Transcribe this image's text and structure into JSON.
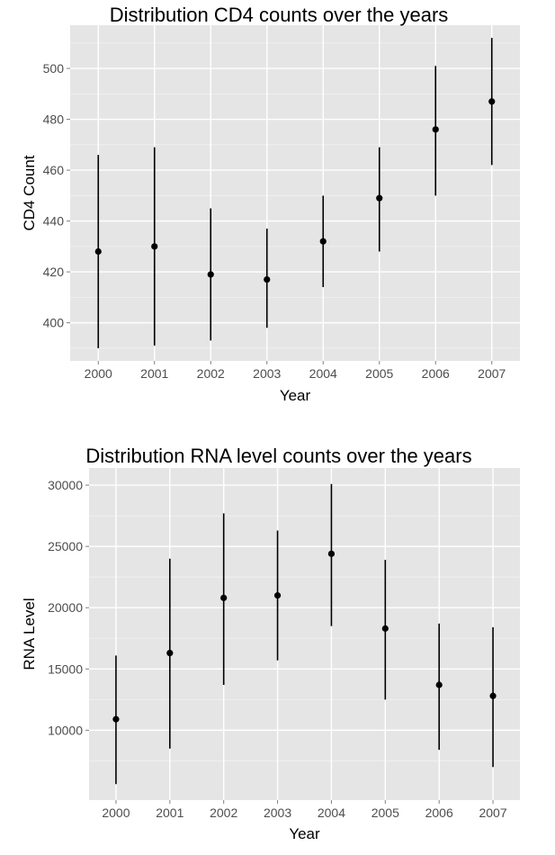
{
  "chart_data": [
    {
      "type": "scatter",
      "title": "Distribution CD4 counts over the years",
      "xlabel": "Year",
      "ylabel": "CD4 Count",
      "categories": [
        "2000",
        "2001",
        "2002",
        "2003",
        "2004",
        "2005",
        "2006",
        "2007"
      ],
      "series": [
        {
          "values": [
            428,
            430,
            419,
            417,
            432,
            449,
            476,
            487
          ],
          "lower": [
            390,
            391,
            393,
            398,
            414,
            428,
            450,
            462
          ],
          "upper": [
            466,
            469,
            445,
            437,
            450,
            469,
            501,
            512
          ]
        }
      ],
      "yticks": [
        400,
        420,
        440,
        460,
        480,
        500
      ],
      "ytick_labels": [
        "400",
        "420",
        "440",
        "460",
        "480",
        "500"
      ],
      "ylim": [
        385,
        517
      ],
      "grid": true,
      "colors": {
        "panel": "#e5e5e5",
        "grid": "#ffffff",
        "marks": "#000000"
      }
    },
    {
      "type": "scatter",
      "title": "Distribution RNA level counts over the years",
      "xlabel": "Year",
      "ylabel": "RNA Level",
      "categories": [
        "2000",
        "2001",
        "2002",
        "2003",
        "2004",
        "2005",
        "2006",
        "2007"
      ],
      "series": [
        {
          "values": [
            10900,
            16300,
            20800,
            21000,
            24400,
            18300,
            13700,
            12800
          ],
          "lower": [
            5600,
            8500,
            13700,
            15700,
            18500,
            12500,
            8400,
            7000
          ],
          "upper": [
            16100,
            24000,
            27700,
            26300,
            30100,
            23900,
            18700,
            18400
          ]
        }
      ],
      "yticks": [
        10000,
        15000,
        20000,
        25000,
        30000
      ],
      "ytick_labels": [
        "10000",
        "15000",
        "20000",
        "25000",
        "30000"
      ],
      "ylim": [
        4300,
        31400
      ],
      "grid": true,
      "colors": {
        "panel": "#e5e5e5",
        "grid": "#ffffff",
        "marks": "#000000"
      }
    }
  ]
}
